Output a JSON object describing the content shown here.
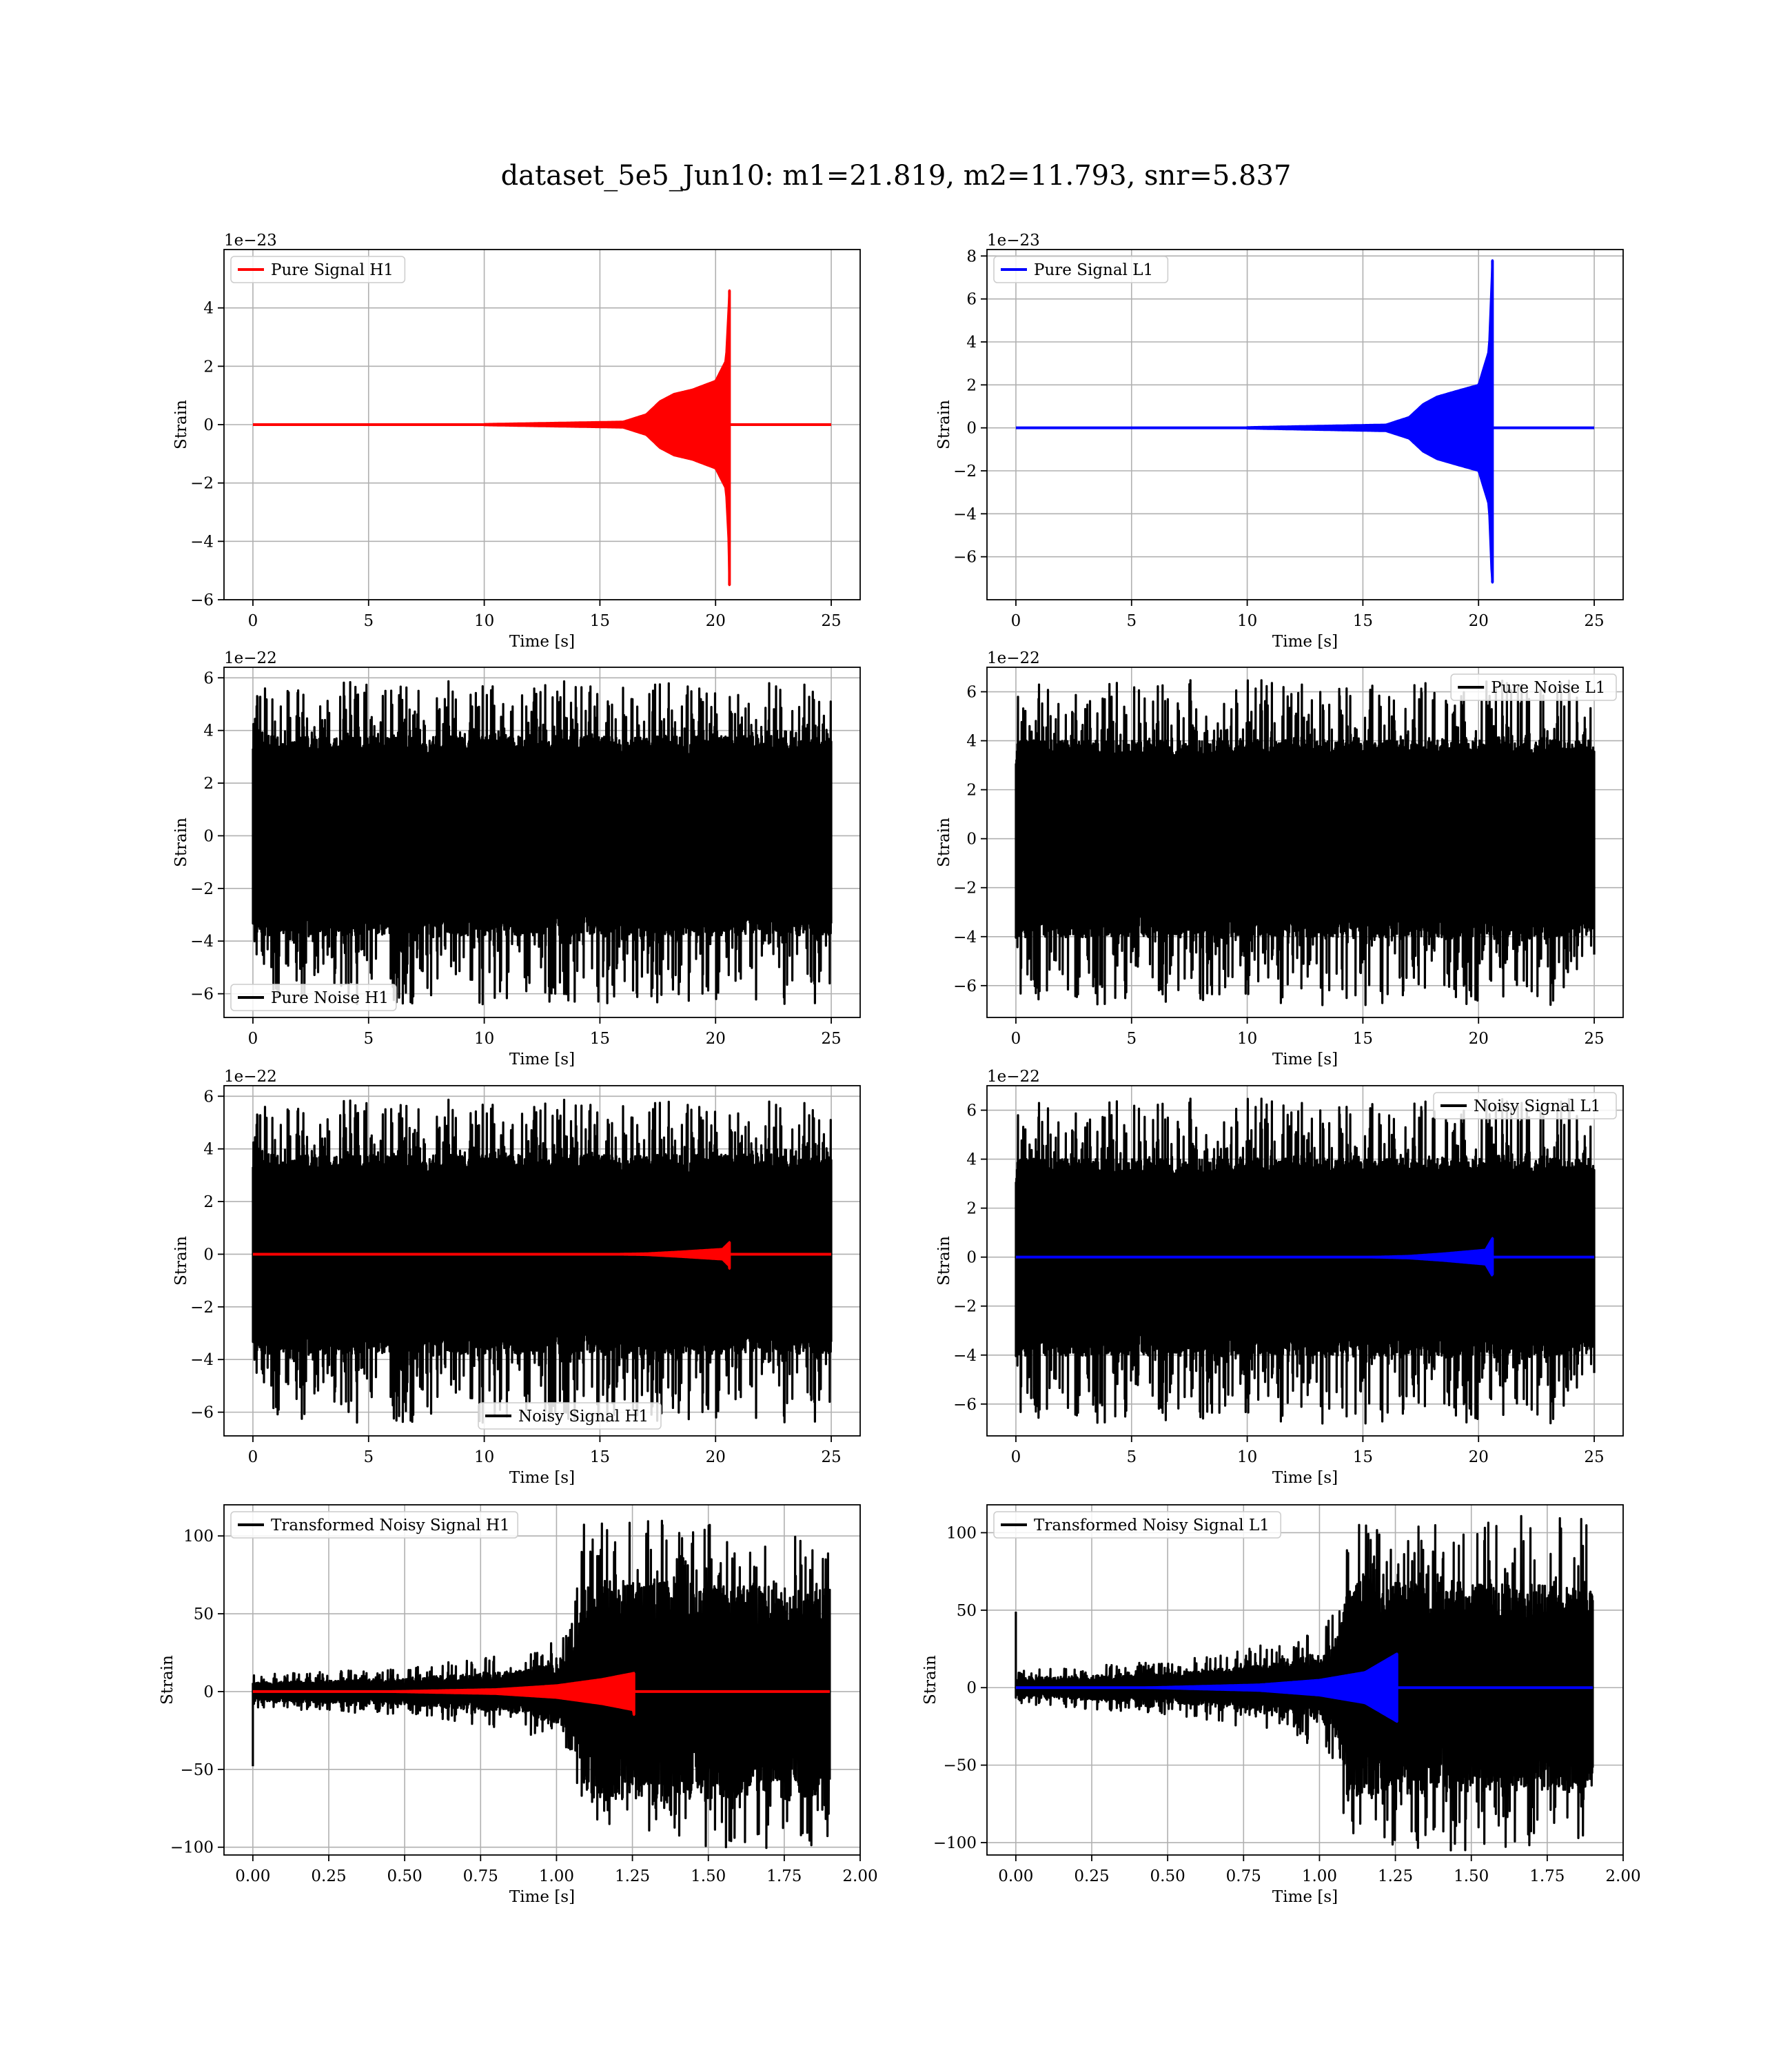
{
  "figure": {
    "title": "dataset_5e5_Jun10: m1=21.819, m2=11.793, snr=5.837"
  },
  "chart_data": [
    {
      "type": "line",
      "legend": "Pure Signal H1",
      "legend_loc": "upper-left",
      "xlabel": "Time [s]",
      "ylabel": "Strain",
      "offset_text": "1e−23",
      "xlim": [
        -1.25,
        26.25
      ],
      "ylim": [
        -6,
        6
      ],
      "xticks": [
        0,
        5,
        10,
        15,
        20,
        25
      ],
      "yticks": [
        -6,
        -4,
        -2,
        0,
        2,
        4
      ],
      "grid": true,
      "series": [
        {
          "kind": "chirp",
          "color": "#ff0000",
          "x_range": [
            0,
            25
          ],
          "merger_t": 20.6,
          "envelope": [
            [
              10.0,
              0.02
            ],
            [
              16.0,
              0.1
            ],
            [
              17.0,
              0.35
            ],
            [
              17.6,
              0.8
            ],
            [
              18.2,
              1.05
            ],
            [
              19.0,
              1.2
            ],
            [
              20.0,
              1.5
            ],
            [
              20.45,
              2.2
            ],
            [
              20.6,
              4.6
            ]
          ],
          "neg_peak": -5.5
        }
      ]
    },
    {
      "type": "line",
      "legend": "Pure Signal L1",
      "legend_loc": "upper-left",
      "xlabel": "Time [s]",
      "ylabel": "Strain",
      "offset_text": "1e−23",
      "xlim": [
        -1.25,
        26.25
      ],
      "ylim": [
        -8,
        8.3
      ],
      "xticks": [
        0,
        5,
        10,
        15,
        20,
        25
      ],
      "yticks": [
        -6,
        -4,
        -2,
        0,
        2,
        4,
        6,
        8
      ],
      "grid": true,
      "series": [
        {
          "kind": "chirp",
          "color": "#0000ff",
          "x_range": [
            0,
            25
          ],
          "merger_t": 20.6,
          "envelope": [
            [
              10.0,
              0.03
            ],
            [
              16.0,
              0.15
            ],
            [
              17.0,
              0.5
            ],
            [
              17.6,
              1.1
            ],
            [
              18.2,
              1.45
            ],
            [
              19.0,
              1.7
            ],
            [
              20.0,
              2.0
            ],
            [
              20.45,
              3.6
            ],
            [
              20.6,
              7.8
            ]
          ],
          "neg_peak": -7.2
        }
      ]
    },
    {
      "type": "line",
      "legend": "Pure Noise H1",
      "legend_loc": "lower-left",
      "xlabel": "Time [s]",
      "ylabel": "Strain",
      "offset_text": "1e−22",
      "xlim": [
        -1.25,
        26.25
      ],
      "ylim": [
        -6.9,
        6.4
      ],
      "xticks": [
        0,
        5,
        10,
        15,
        20,
        25
      ],
      "yticks": [
        -6,
        -4,
        -2,
        0,
        2,
        4,
        6
      ],
      "grid": true,
      "series": [
        {
          "kind": "noise",
          "color": "#000000",
          "x_range": [
            0,
            25
          ],
          "band": [
            -3.3,
            3.3
          ],
          "spike_max": 5.9,
          "spike_min": -6.4,
          "seed": 11
        }
      ]
    },
    {
      "type": "line",
      "legend": "Pure Noise L1",
      "legend_loc": "upper-right",
      "xlabel": "Time [s]",
      "ylabel": "Strain",
      "offset_text": "1e−22",
      "xlim": [
        -1.25,
        26.25
      ],
      "ylim": [
        -7.3,
        7.0
      ],
      "xticks": [
        0,
        5,
        10,
        15,
        20,
        25
      ],
      "yticks": [
        -6,
        -4,
        -2,
        0,
        2,
        4,
        6
      ],
      "grid": true,
      "series": [
        {
          "kind": "noise",
          "color": "#000000",
          "x_range": [
            0,
            25
          ],
          "band": [
            -3.5,
            3.5
          ],
          "spike_max": 6.5,
          "spike_min": -6.8,
          "seed": 23
        }
      ]
    },
    {
      "type": "line",
      "legend": "Noisy Signal H1",
      "legend_loc": "lower-center",
      "xlabel": "Time [s]",
      "ylabel": "Strain",
      "offset_text": "1e−22",
      "xlim": [
        -1.25,
        26.25
      ],
      "ylim": [
        -6.9,
        6.4
      ],
      "xticks": [
        0,
        5,
        10,
        15,
        20,
        25
      ],
      "yticks": [
        -6,
        -4,
        -2,
        0,
        2,
        4,
        6
      ],
      "grid": true,
      "series": [
        {
          "kind": "noise",
          "color": "#000000",
          "x_range": [
            0,
            25
          ],
          "band": [
            -3.3,
            3.3
          ],
          "spike_max": 5.9,
          "spike_min": -6.4,
          "seed": 11
        },
        {
          "kind": "chirp",
          "color": "#ff0000",
          "x_range": [
            0,
            25
          ],
          "merger_t": 20.6,
          "envelope": [
            [
              15.0,
              0.0
            ],
            [
              17.0,
              0.03
            ],
            [
              18.5,
              0.1
            ],
            [
              20.3,
              0.2
            ],
            [
              20.6,
              0.46
            ]
          ],
          "neg_peak": -0.55
        }
      ]
    },
    {
      "type": "line",
      "legend": "Noisy Signal L1",
      "legend_loc": "upper-right",
      "xlabel": "Time [s]",
      "ylabel": "Strain",
      "offset_text": "1e−22",
      "xlim": [
        -1.25,
        26.25
      ],
      "ylim": [
        -7.3,
        7.0
      ],
      "xticks": [
        0,
        5,
        10,
        15,
        20,
        25
      ],
      "yticks": [
        -6,
        -4,
        -2,
        0,
        2,
        4,
        6
      ],
      "grid": true,
      "series": [
        {
          "kind": "noise",
          "color": "#000000",
          "x_range": [
            0,
            25
          ],
          "band": [
            -3.5,
            3.5
          ],
          "spike_max": 6.5,
          "spike_min": -6.8,
          "seed": 23
        },
        {
          "kind": "chirp",
          "color": "#0000ff",
          "x_range": [
            0,
            25
          ],
          "merger_t": 20.6,
          "envelope": [
            [
              15.0,
              0.0
            ],
            [
              17.0,
              0.05
            ],
            [
              18.5,
              0.15
            ],
            [
              20.3,
              0.3
            ],
            [
              20.6,
              0.78
            ]
          ],
          "neg_peak": -0.72
        }
      ]
    },
    {
      "type": "line",
      "legend": "Transformed Noisy Signal H1",
      "legend_loc": "upper-left",
      "xlabel": "Time [s]",
      "ylabel": "Strain",
      "offset_text": "",
      "xlim": [
        -0.095,
        2.0
      ],
      "ylim": [
        -105,
        120
      ],
      "xticks": [
        0.0,
        0.25,
        0.5,
        0.75,
        1.0,
        1.25,
        1.5,
        1.75,
        2.0
      ],
      "xtick_labels": [
        "0.00",
        "0.25",
        "0.50",
        "0.75",
        "1.00",
        "1.25",
        "1.50",
        "1.75",
        "2.00"
      ],
      "yticks": [
        -100,
        -50,
        0,
        50,
        100
      ],
      "grid": true,
      "series": [
        {
          "kind": "whitened",
          "color": "#000000",
          "x_range": [
            0,
            1.9
          ],
          "seed": 41,
          "start_spike": -48,
          "step_t": 1.1,
          "amp_profile": [
            [
              0.0,
              5
            ],
            [
              0.5,
              7
            ],
            [
              0.9,
              12
            ],
            [
              1.05,
              20
            ],
            [
              1.1,
              60
            ],
            [
              1.9,
              55
            ]
          ],
          "spike_max": 110,
          "spike_min": -101
        },
        {
          "kind": "chirp",
          "color": "#ff0000",
          "x_range": [
            0,
            1.9
          ],
          "merger_t": 1.255,
          "envelope": [
            [
              0.4,
              0.0
            ],
            [
              0.8,
              1.5
            ],
            [
              1.0,
              4.0
            ],
            [
              1.15,
              8.0
            ],
            [
              1.255,
              12.0
            ]
          ],
          "neg_peak": -15
        }
      ]
    },
    {
      "type": "line",
      "legend": "Transformed Noisy Signal L1",
      "legend_loc": "upper-left",
      "xlabel": "Time [s]",
      "ylabel": "Strain",
      "offset_text": "",
      "xlim": [
        -0.095,
        2.0
      ],
      "ylim": [
        -108,
        118
      ],
      "xticks": [
        0.0,
        0.25,
        0.5,
        0.75,
        1.0,
        1.25,
        1.5,
        1.75,
        2.0
      ],
      "xtick_labels": [
        "0.00",
        "0.25",
        "0.50",
        "0.75",
        "1.00",
        "1.25",
        "1.50",
        "1.75",
        "2.00"
      ],
      "yticks": [
        -100,
        -50,
        0,
        50,
        100
      ],
      "grid": true,
      "series": [
        {
          "kind": "whitened",
          "color": "#000000",
          "x_range": [
            0,
            1.9
          ],
          "seed": 57,
          "start_spike": 49,
          "step_t": 1.1,
          "amp_profile": [
            [
              0.0,
              5
            ],
            [
              0.5,
              8
            ],
            [
              0.9,
              14
            ],
            [
              1.05,
              22
            ],
            [
              1.1,
              58
            ],
            [
              1.88,
              55
            ]
          ],
          "spike_max": 112,
          "spike_min": -105
        },
        {
          "kind": "chirp",
          "color": "#0000ff",
          "x_range": [
            0,
            1.9
          ],
          "merger_t": 1.255,
          "envelope": [
            [
              0.4,
              0.0
            ],
            [
              0.8,
              2.0
            ],
            [
              1.0,
              5.0
            ],
            [
              1.15,
              10.0
            ],
            [
              1.255,
              22.0
            ]
          ],
          "neg_peak": -22
        }
      ]
    }
  ]
}
